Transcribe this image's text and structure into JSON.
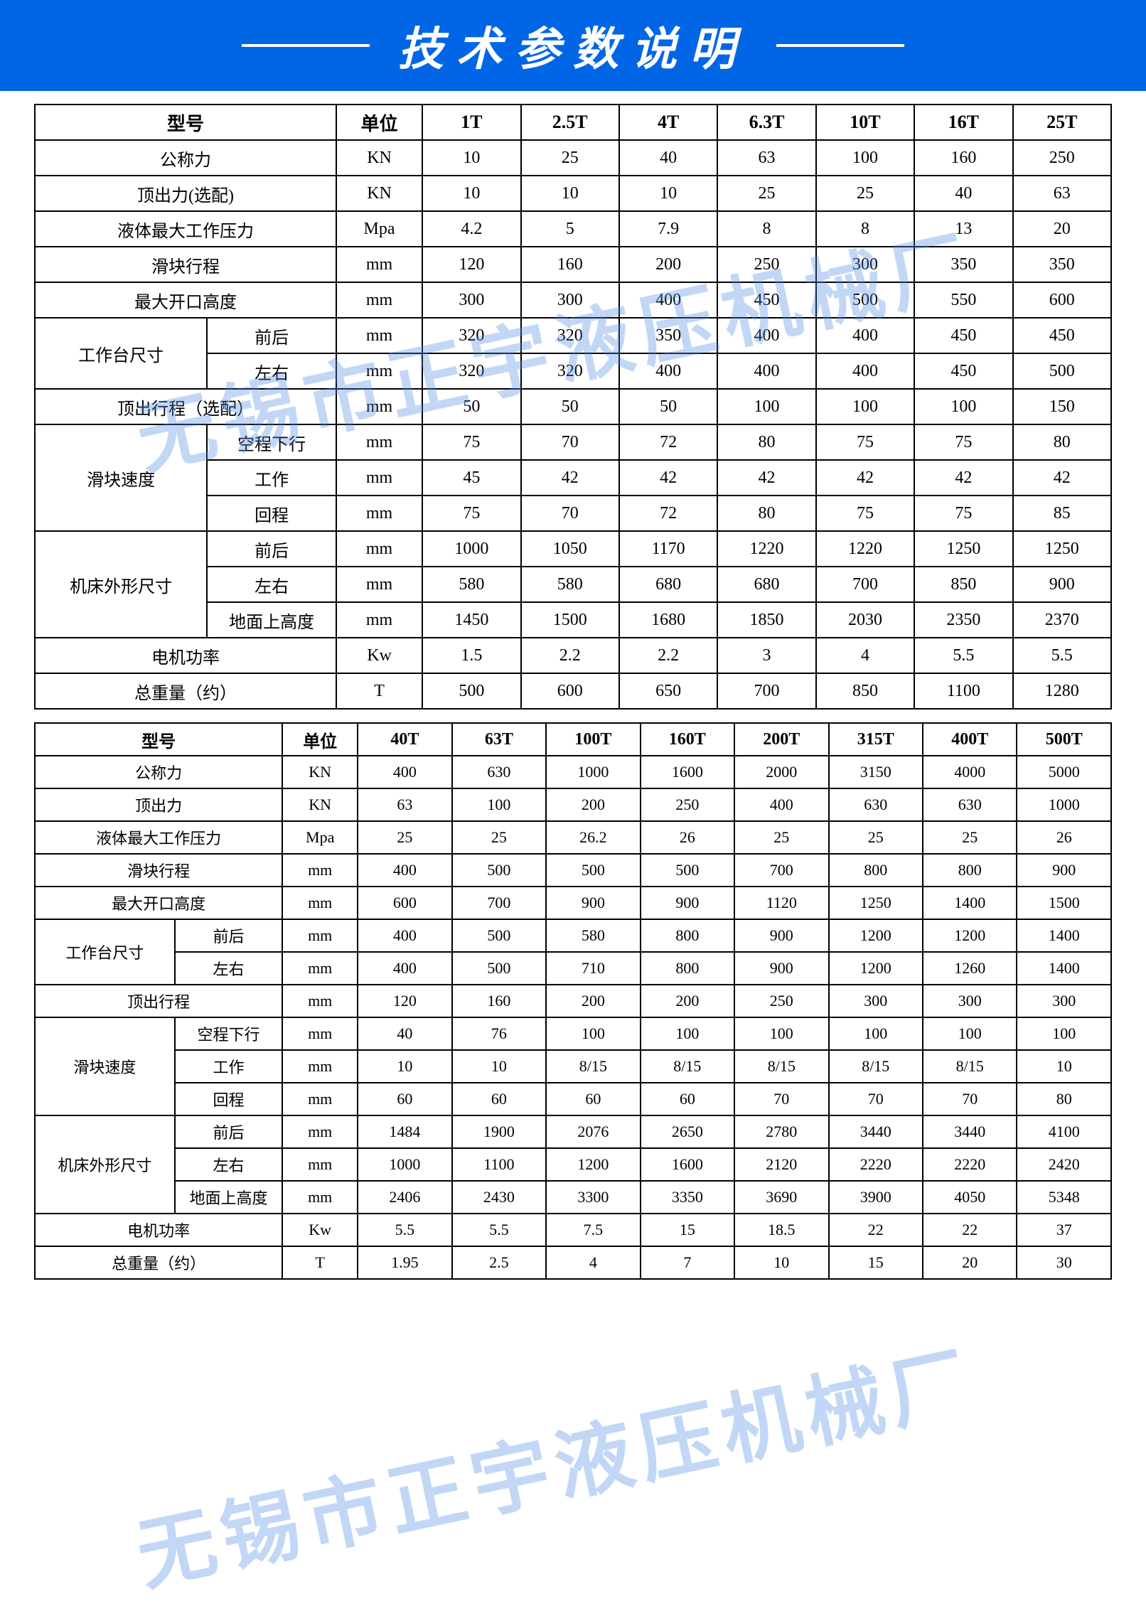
{
  "header": {
    "title": "技术参数说明",
    "bg_color": "#0066e6",
    "text_color": "#ffffff",
    "line_color": "#ffffff"
  },
  "watermark_text": "无锡市正宇液压机械厂",
  "watermark_color": "#5a8de6",
  "table1": {
    "border_color": "#000000",
    "header_labels": {
      "model": "型号",
      "unit": "单位"
    },
    "models": [
      "1T",
      "2.5T",
      "4T",
      "6.3T",
      "10T",
      "16T",
      "25T"
    ],
    "rows": [
      {
        "label": "公称力",
        "unit": "KN",
        "vals": [
          "10",
          "25",
          "40",
          "63",
          "100",
          "160",
          "250"
        ]
      },
      {
        "label": "顶出力(选配)",
        "unit": "KN",
        "vals": [
          "10",
          "10",
          "10",
          "25",
          "25",
          "40",
          "63"
        ]
      },
      {
        "label": "液体最大工作压力",
        "unit": "Mpa",
        "vals": [
          "4.2",
          "5",
          "7.9",
          "8",
          "8",
          "13",
          "20"
        ]
      },
      {
        "label": "滑块行程",
        "unit": "mm",
        "vals": [
          "120",
          "160",
          "200",
          "250",
          "300",
          "350",
          "350"
        ]
      },
      {
        "label": "最大开口高度",
        "unit": "mm",
        "vals": [
          "300",
          "300",
          "400",
          "450",
          "500",
          "550",
          "600"
        ]
      }
    ],
    "group_worktable": {
      "label": "工作台尺寸",
      "sub": [
        {
          "label": "前后",
          "unit": "mm",
          "vals": [
            "320",
            "320",
            "350",
            "400",
            "400",
            "450",
            "450"
          ]
        },
        {
          "label": "左右",
          "unit": "mm",
          "vals": [
            "320",
            "320",
            "400",
            "400",
            "400",
            "450",
            "500"
          ]
        }
      ]
    },
    "row_eject": {
      "label": "顶出行程（选配）",
      "unit": "mm",
      "vals": [
        "50",
        "50",
        "50",
        "100",
        "100",
        "100",
        "150"
      ]
    },
    "group_speed": {
      "label": "滑块速度",
      "sub": [
        {
          "label": "空程下行",
          "unit": "mm",
          "vals": [
            "75",
            "70",
            "72",
            "80",
            "75",
            "75",
            "80"
          ]
        },
        {
          "label": "工作",
          "unit": "mm",
          "vals": [
            "45",
            "42",
            "42",
            "42",
            "42",
            "42",
            "42"
          ]
        },
        {
          "label": "回程",
          "unit": "mm",
          "vals": [
            "75",
            "70",
            "72",
            "80",
            "75",
            "75",
            "85"
          ]
        }
      ]
    },
    "group_machine": {
      "label": "机床外形尺寸",
      "sub": [
        {
          "label": "前后",
          "unit": "mm",
          "vals": [
            "1000",
            "1050",
            "1170",
            "1220",
            "1220",
            "1250",
            "1250"
          ]
        },
        {
          "label": "左右",
          "unit": "mm",
          "vals": [
            "580",
            "580",
            "680",
            "680",
            "700",
            "850",
            "900"
          ]
        },
        {
          "label": "地面上高度",
          "unit": "mm",
          "vals": [
            "1450",
            "1500",
            "1680",
            "1850",
            "2030",
            "2350",
            "2370"
          ]
        }
      ]
    },
    "row_power": {
      "label": "电机功率",
      "unit": "Kw",
      "vals": [
        "1.5",
        "2.2",
        "2.2",
        "3",
        "4",
        "5.5",
        "5.5"
      ]
    },
    "row_weight": {
      "label": "总重量（约）",
      "unit": "T",
      "vals": [
        "500",
        "600",
        "650",
        "700",
        "850",
        "1100",
        "1280"
      ]
    }
  },
  "table2": {
    "header_labels": {
      "model": "型号",
      "unit": "单位"
    },
    "models": [
      "40T",
      "63T",
      "100T",
      "160T",
      "200T",
      "315T",
      "400T",
      "500T"
    ],
    "rows": [
      {
        "label": "公称力",
        "unit": "KN",
        "vals": [
          "400",
          "630",
          "1000",
          "1600",
          "2000",
          "3150",
          "4000",
          "5000"
        ]
      },
      {
        "label": "顶出力",
        "unit": "KN",
        "vals": [
          "63",
          "100",
          "200",
          "250",
          "400",
          "630",
          "630",
          "1000"
        ]
      },
      {
        "label": "液体最大工作压力",
        "unit": "Mpa",
        "vals": [
          "25",
          "25",
          "26.2",
          "26",
          "25",
          "25",
          "25",
          "26"
        ]
      },
      {
        "label": "滑块行程",
        "unit": "mm",
        "vals": [
          "400",
          "500",
          "500",
          "500",
          "700",
          "800",
          "800",
          "900"
        ]
      },
      {
        "label": "最大开口高度",
        "unit": "mm",
        "vals": [
          "600",
          "700",
          "900",
          "900",
          "1120",
          "1250",
          "1400",
          "1500"
        ]
      }
    ],
    "group_worktable": {
      "label": "工作台尺寸",
      "sub": [
        {
          "label": "前后",
          "unit": "mm",
          "vals": [
            "400",
            "500",
            "580",
            "800",
            "900",
            "1200",
            "1200",
            "1400"
          ]
        },
        {
          "label": "左右",
          "unit": "mm",
          "vals": [
            "400",
            "500",
            "710",
            "800",
            "900",
            "1200",
            "1260",
            "1400"
          ]
        }
      ]
    },
    "row_eject": {
      "label": "顶出行程",
      "unit": "mm",
      "vals": [
        "120",
        "160",
        "200",
        "200",
        "250",
        "300",
        "300",
        "300"
      ]
    },
    "group_speed": {
      "label": "滑块速度",
      "sub": [
        {
          "label": "空程下行",
          "unit": "mm",
          "vals": [
            "40",
            "76",
            "100",
            "100",
            "100",
            "100",
            "100",
            "100"
          ]
        },
        {
          "label": "工作",
          "unit": "mm",
          "vals": [
            "10",
            "10",
            "8/15",
            "8/15",
            "8/15",
            "8/15",
            "8/15",
            "10"
          ]
        },
        {
          "label": "回程",
          "unit": "mm",
          "vals": [
            "60",
            "60",
            "60",
            "60",
            "70",
            "70",
            "70",
            "80"
          ]
        }
      ]
    },
    "group_machine": {
      "label": "机床外形尺寸",
      "sub": [
        {
          "label": "前后",
          "unit": "mm",
          "vals": [
            "1484",
            "1900",
            "2076",
            "2650",
            "2780",
            "3440",
            "3440",
            "4100"
          ]
        },
        {
          "label": "左右",
          "unit": "mm",
          "vals": [
            "1000",
            "1100",
            "1200",
            "1600",
            "2120",
            "2220",
            "2220",
            "2420"
          ]
        },
        {
          "label": "地面上高度",
          "unit": "mm",
          "vals": [
            "2406",
            "2430",
            "3300",
            "3350",
            "3690",
            "3900",
            "4050",
            "5348"
          ]
        }
      ]
    },
    "row_power": {
      "label": "电机功率",
      "unit": "Kw",
      "vals": [
        "5.5",
        "5.5",
        "7.5",
        "15",
        "18.5",
        "22",
        "22",
        "37"
      ]
    },
    "row_weight": {
      "label": "总重量（约）",
      "unit": "T",
      "vals": [
        "1.95",
        "2.5",
        "4",
        "7",
        "10",
        "15",
        "20",
        "30"
      ]
    }
  }
}
